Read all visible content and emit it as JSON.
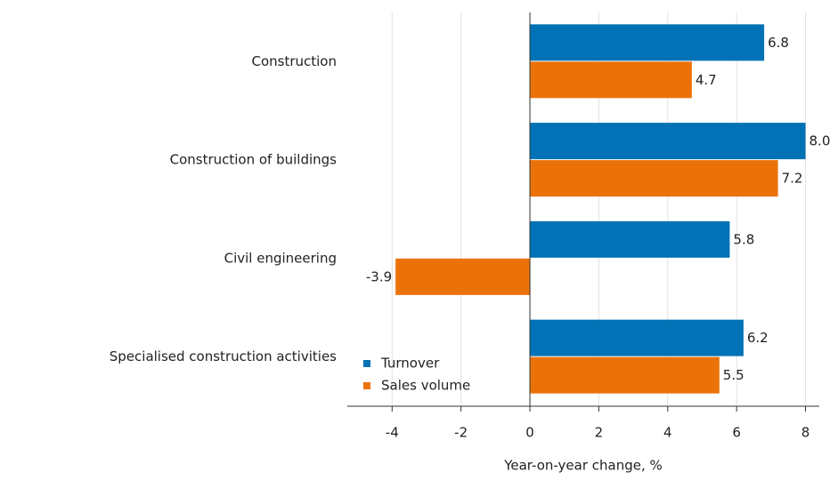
{
  "chart_data": {
    "type": "hbar",
    "categories": [
      "Construction",
      "Construction of buildings",
      "Civil engineering",
      "Specialised construction activities"
    ],
    "series": [
      {
        "name": "Turnover",
        "color": "#0072b5",
        "values": [
          6.8,
          8.0,
          5.8,
          6.2
        ],
        "value_labels": [
          "6.8",
          "8.0",
          "5.8",
          "6.2"
        ]
      },
      {
        "name": "Sales volume",
        "color": "#eb7208",
        "values": [
          4.7,
          7.2,
          -3.9,
          5.5
        ],
        "value_labels": [
          "4.7",
          "7.2",
          "-3.9",
          "5.5"
        ]
      }
    ],
    "xlabel": "Year-on-year change, %",
    "xlim": [
      -5.3,
      8.4
    ],
    "xticks": [
      -4,
      -2,
      0,
      2,
      4,
      6,
      8
    ],
    "grid": true,
    "legend": "lower left"
  }
}
